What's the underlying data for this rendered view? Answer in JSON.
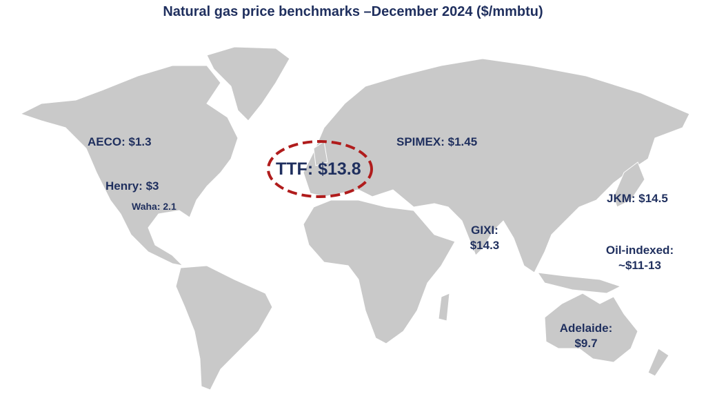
{
  "title": "Natural gas price benchmarks –December 2024 ($/mmbtu)",
  "colors": {
    "land": "#c9c9c9",
    "text": "#1f2f5e",
    "highlight": "#b01c1c"
  },
  "benchmarks": [
    {
      "name": "AECO",
      "label": "AECO: $1.3",
      "price": 1.3
    },
    {
      "name": "Henry",
      "label": "Henry: $3",
      "price": 3
    },
    {
      "name": "Waha",
      "label": "Waha: 2.1",
      "price": 2.1
    },
    {
      "name": "TTF",
      "label": "TTF: $13.8",
      "price": 13.8,
      "highlighted": true
    },
    {
      "name": "SPIMEX",
      "label": "SPIMEX: $1.45",
      "price": 1.45
    },
    {
      "name": "GIXI",
      "label": "GIXI:",
      "label2": "$14.3",
      "price": 14.3
    },
    {
      "name": "JKM",
      "label": "JKM: $14.5",
      "price": 14.5
    },
    {
      "name": "Oil-indexed",
      "label": "Oil-indexed:",
      "label2": "~$11-13"
    },
    {
      "name": "Adelaide",
      "label": "Adelaide:",
      "label2": "$9.7",
      "price": 9.7
    }
  ]
}
